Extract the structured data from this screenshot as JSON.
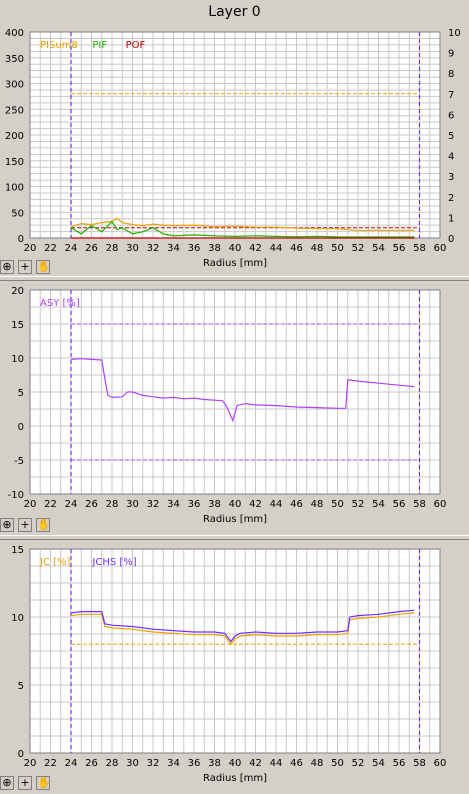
{
  "window": {
    "title": "Layer 0"
  },
  "toolbar": {
    "buttons": [
      {
        "name": "zoom-icon",
        "glyph": "⊕"
      },
      {
        "name": "plus-icon",
        "glyph": "+"
      },
      {
        "name": "hand-icon",
        "glyph": "✋"
      }
    ]
  },
  "colors": {
    "grid": "#c8c8c8",
    "frame": "#808080",
    "boundary": "#7030ff",
    "pisum": "#f0a000",
    "pif": "#20b000",
    "pof": "#c00000",
    "asy": "#b040ff",
    "jc": "#f0a000",
    "jchs": "#7030ff"
  },
  "chart_data": [
    {
      "type": "line",
      "title": "",
      "xlabel": "Radius [mm]",
      "xlim": [
        20,
        60
      ],
      "xticks": [
        20,
        22,
        24,
        26,
        28,
        30,
        32,
        34,
        36,
        38,
        40,
        42,
        44,
        46,
        48,
        50,
        52,
        54,
        56,
        58,
        60
      ],
      "ylim": [
        0,
        400
      ],
      "yticks": [
        0,
        50,
        100,
        150,
        200,
        250,
        300,
        350,
        400
      ],
      "y2lim": [
        0,
        10
      ],
      "y2ticks": [
        0,
        1,
        2,
        3,
        4,
        5,
        6,
        7,
        8,
        9,
        10
      ],
      "grid": true,
      "legend_placement": "top-left",
      "boundary_lines_x": [
        24,
        58
      ],
      "threshold_lines": [
        {
          "axis": "y2",
          "value": 7,
          "color_key": "pisum"
        },
        {
          "axis": "y2",
          "value": 0.5,
          "color_key": "pof"
        }
      ],
      "series": [
        {
          "name": "PISum8",
          "axis": "y",
          "color_key": "pisum",
          "x": [
            24,
            25,
            26,
            27,
            28,
            28.5,
            29,
            30,
            31,
            32,
            33,
            34,
            36,
            38,
            40,
            42,
            44,
            46,
            48,
            50,
            51,
            52,
            54,
            56,
            57.5
          ],
          "y": [
            22,
            28,
            26,
            30,
            32,
            38,
            30,
            26,
            24,
            27,
            25,
            24,
            25,
            22,
            23,
            21,
            21,
            19,
            18,
            18,
            16,
            15,
            15,
            15,
            15
          ]
        },
        {
          "name": "PIF",
          "axis": "y2",
          "color_key": "pif",
          "x": [
            24,
            25,
            26,
            27,
            28,
            28.5,
            29,
            30,
            31,
            32,
            33,
            34,
            36,
            38,
            40,
            42,
            44,
            46,
            48,
            50,
            52,
            54,
            56,
            57.5
          ],
          "y": [
            0.5,
            0.2,
            0.6,
            0.3,
            0.8,
            0.4,
            0.5,
            0.2,
            0.3,
            0.5,
            0.2,
            0.1,
            0.15,
            0.1,
            0.08,
            0.1,
            0.08,
            0.06,
            0.08,
            0.05,
            0.05,
            0.05,
            0.05,
            0.05
          ]
        },
        {
          "name": "POF",
          "axis": "y2",
          "color_key": "pof",
          "x": [
            24,
            57.5
          ],
          "y": [
            0,
            0
          ]
        }
      ]
    },
    {
      "type": "line",
      "title": "",
      "xlabel": "Radius [mm]",
      "xlim": [
        20,
        60
      ],
      "xticks": [
        20,
        22,
        24,
        26,
        28,
        30,
        32,
        34,
        36,
        38,
        40,
        42,
        44,
        46,
        48,
        50,
        52,
        54,
        56,
        58,
        60
      ],
      "ylim": [
        -10,
        20
      ],
      "yticks": [
        -10,
        -5,
        0,
        5,
        10,
        15,
        20
      ],
      "grid": true,
      "legend_placement": "top-left",
      "boundary_lines_x": [
        24,
        58
      ],
      "threshold_lines": [
        {
          "axis": "y",
          "value": 15,
          "color_key": "asy"
        },
        {
          "axis": "y",
          "value": -5,
          "color_key": "asy"
        }
      ],
      "series": [
        {
          "name": "ASY [%]",
          "axis": "y",
          "color_key": "asy",
          "x": [
            24,
            25,
            26,
            27,
            27.3,
            27.6,
            28,
            29,
            29.5,
            30,
            31,
            32,
            33,
            34,
            35,
            36,
            37,
            38,
            38.8,
            39.2,
            39.5,
            39.8,
            40.2,
            41,
            42,
            44,
            46,
            48,
            50,
            50.8,
            51,
            52,
            54,
            56,
            57.5
          ],
          "y": [
            9.8,
            9.9,
            9.8,
            9.7,
            7.0,
            4.5,
            4.2,
            4.3,
            5.0,
            5.0,
            4.5,
            4.3,
            4.1,
            4.2,
            4.0,
            4.1,
            3.9,
            3.8,
            3.7,
            2.8,
            1.8,
            0.8,
            3.0,
            3.3,
            3.1,
            3.0,
            2.8,
            2.7,
            2.6,
            2.6,
            6.8,
            6.6,
            6.3,
            6.0,
            5.8
          ]
        }
      ]
    },
    {
      "type": "line",
      "title": "",
      "xlabel": "Radius [mm]",
      "xlim": [
        20,
        60
      ],
      "xticks": [
        20,
        22,
        24,
        26,
        28,
        30,
        32,
        34,
        36,
        38,
        40,
        42,
        44,
        46,
        48,
        50,
        52,
        54,
        56,
        58,
        60
      ],
      "ylim": [
        0,
        15
      ],
      "yticks": [
        0,
        5,
        10,
        15
      ],
      "grid": true,
      "legend_placement": "top-left",
      "boundary_lines_x": [
        24,
        58
      ],
      "threshold_lines": [
        {
          "axis": "y",
          "value": 8,
          "color_key": "jc"
        }
      ],
      "series": [
        {
          "name": "JC [%]",
          "axis": "y",
          "color_key": "jc",
          "x": [
            24,
            25,
            26,
            27,
            27.3,
            28,
            30,
            32,
            34,
            36,
            38,
            39,
            39.6,
            40,
            40.5,
            42,
            44,
            46,
            48,
            50,
            51,
            51.2,
            52,
            54,
            56,
            57.5
          ],
          "y": [
            10.1,
            10.2,
            10.2,
            10.2,
            9.3,
            9.2,
            9.1,
            8.9,
            8.8,
            8.7,
            8.7,
            8.6,
            8.0,
            8.4,
            8.6,
            8.7,
            8.6,
            8.6,
            8.7,
            8.7,
            8.8,
            9.8,
            9.9,
            10.0,
            10.2,
            10.3
          ]
        },
        {
          "name": "JCHS [%]",
          "axis": "y",
          "color_key": "jchs",
          "x": [
            24,
            25,
            26,
            27,
            27.3,
            28,
            30,
            32,
            34,
            36,
            38,
            39,
            39.6,
            40,
            40.5,
            42,
            44,
            46,
            48,
            50,
            51,
            51.2,
            52,
            54,
            56,
            57.5
          ],
          "y": [
            10.3,
            10.4,
            10.4,
            10.4,
            9.5,
            9.4,
            9.3,
            9.1,
            9.0,
            8.9,
            8.9,
            8.8,
            8.2,
            8.6,
            8.8,
            8.9,
            8.8,
            8.8,
            8.9,
            8.9,
            9.0,
            10.0,
            10.1,
            10.2,
            10.4,
            10.5
          ]
        }
      ]
    }
  ]
}
